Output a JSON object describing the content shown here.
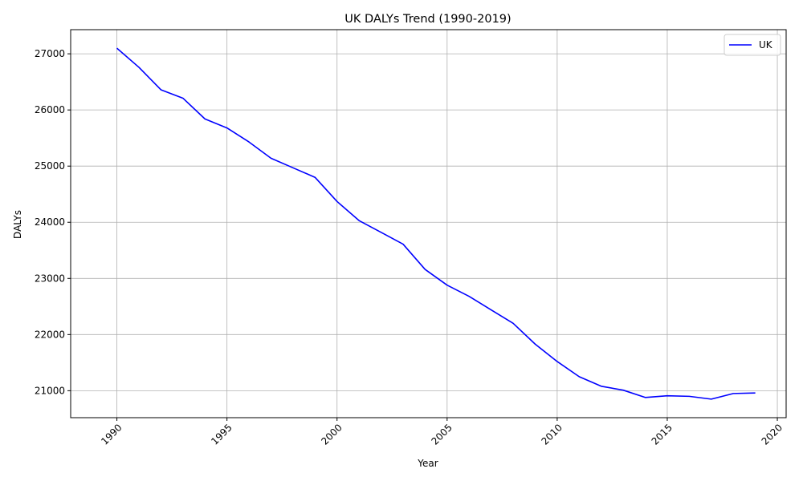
{
  "chart_data": {
    "type": "line",
    "title": "UK DALYs Trend (1990-2019)",
    "xlabel": "Year",
    "ylabel": "DALYs",
    "xlim": [
      1987.9,
      2020.4
    ],
    "ylim": [
      20520,
      27430
    ],
    "xticks": [
      1990,
      1995,
      2000,
      2005,
      2010,
      2015,
      2020
    ],
    "yticks": [
      21000,
      22000,
      23000,
      24000,
      25000,
      26000,
      27000
    ],
    "grid": true,
    "legend_position": "top-right",
    "x": [
      1990,
      1991,
      1992,
      1993,
      1994,
      1995,
      1996,
      1997,
      1998,
      1999,
      2000,
      2001,
      2002,
      2003,
      2004,
      2005,
      2006,
      2007,
      2008,
      2009,
      2010,
      2011,
      2012,
      2013,
      2014,
      2015,
      2016,
      2017,
      2018,
      2019
    ],
    "series": [
      {
        "name": "UK",
        "color": "#0000ff",
        "values": [
          27100,
          26760,
          26360,
          26210,
          25840,
          25680,
          25430,
          25140,
          24970,
          24800,
          24370,
          24030,
          23820,
          23610,
          23160,
          22880,
          22680,
          22440,
          22200,
          21830,
          21520,
          21250,
          21080,
          21010,
          20880,
          20910,
          20900,
          20850,
          20950,
          20960
        ]
      }
    ]
  }
}
